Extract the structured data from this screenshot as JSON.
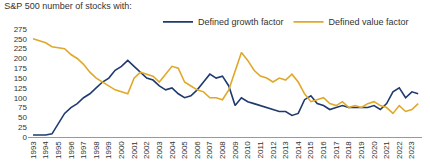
{
  "chart_data": {
    "type": "line",
    "title": "S&P 500 number of stocks with:",
    "x": [
      1993,
      1993.5,
      1994,
      1994.5,
      1995,
      1995.5,
      1996,
      1996.5,
      1997,
      1997.5,
      1998,
      1998.5,
      1999,
      1999.5,
      2000,
      2000.5,
      2001,
      2001.5,
      2002,
      2002.5,
      2003,
      2003.5,
      2004,
      2004.5,
      2005,
      2005.5,
      2006,
      2006.5,
      2007,
      2007.5,
      2008,
      2008.5,
      2009,
      2009.5,
      2010,
      2010.5,
      2011,
      2011.5,
      2012,
      2012.5,
      2013,
      2013.5,
      2014,
      2014.5,
      2015,
      2015.5,
      2016,
      2016.5,
      2017,
      2017.5,
      2018,
      2018.5,
      2019,
      2019.5,
      2020,
      2020.5,
      2021,
      2021.5,
      2022,
      2022.5,
      2023,
      2023.5
    ],
    "series": [
      {
        "name": "Defined growth factor",
        "color": "#1f3a6e",
        "values": [
          5,
          5,
          5,
          8,
          35,
          60,
          75,
          85,
          100,
          110,
          125,
          140,
          150,
          170,
          180,
          195,
          180,
          165,
          150,
          145,
          130,
          120,
          125,
          110,
          100,
          105,
          120,
          140,
          160,
          150,
          155,
          130,
          80,
          100,
          90,
          85,
          80,
          75,
          70,
          65,
          65,
          55,
          60,
          95,
          105,
          85,
          80,
          70,
          75,
          80,
          75,
          75,
          75,
          75,
          80,
          70,
          85,
          115,
          125,
          100,
          115,
          110
        ]
      },
      {
        "name": "Defined value factor",
        "color": "#e0a829",
        "values": [
          250,
          245,
          240,
          230,
          228,
          225,
          210,
          200,
          185,
          165,
          150,
          140,
          130,
          120,
          115,
          110,
          150,
          165,
          160,
          155,
          140,
          160,
          180,
          175,
          140,
          130,
          120,
          115,
          100,
          100,
          95,
          120,
          170,
          215,
          195,
          170,
          155,
          150,
          140,
          150,
          145,
          160,
          140,
          110,
          90,
          95,
          100,
          85,
          80,
          90,
          75,
          80,
          75,
          85,
          90,
          80,
          75,
          60,
          80,
          65,
          70,
          85
        ]
      }
    ],
    "xlim": [
      1992.6,
      2023.8
    ],
    "xticks": [
      1993,
      1994,
      1995,
      1996,
      1997,
      1998,
      1999,
      2000,
      2001,
      2002,
      2003,
      2004,
      2005,
      2006,
      2007,
      2008,
      2009,
      2010,
      2011,
      2012,
      2013,
      2014,
      2015,
      2016,
      2017,
      2018,
      2019,
      2020,
      2021,
      2022,
      2023
    ],
    "ylim": [
      0,
      275
    ],
    "yticks": [
      0,
      25,
      50,
      75,
      100,
      125,
      150,
      175,
      200,
      225,
      250,
      275
    ],
    "grid": false,
    "legend": "top"
  }
}
